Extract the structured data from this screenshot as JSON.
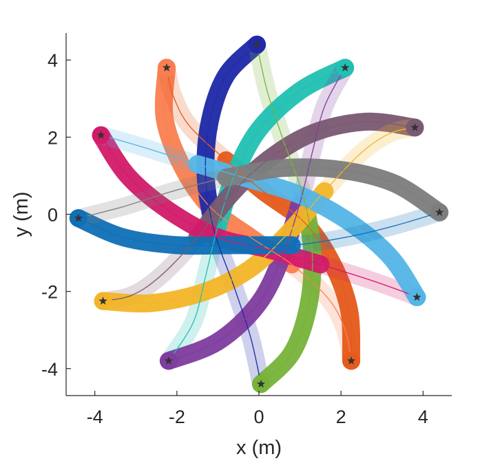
{
  "chart_data": {
    "type": "line",
    "title": "",
    "xlabel": "x (m)",
    "ylabel": "y (m)",
    "xlim": [
      -4.7,
      4.7
    ],
    "ylim": [
      -4.7,
      4.7
    ],
    "xticks": [
      -4,
      -2,
      0,
      2,
      4
    ],
    "yticks": [
      -4,
      -2,
      0,
      2,
      4
    ],
    "xtick_labels": [
      "-4",
      "-2",
      "0",
      "2",
      "4"
    ],
    "ytick_labels": [
      "-4",
      "-2",
      "0",
      "2",
      "4"
    ],
    "grid": false,
    "legend": "none",
    "series": [
      {
        "color": "#f97f52",
        "start": [
          -2.25,
          3.8
        ],
        "goal": [
          2.25,
          -3.8
        ],
        "path": [
          [
            -2.25,
            3.8
          ],
          [
            -2.3,
            2.5
          ],
          [
            -1.9,
            1.3
          ],
          [
            -1.2,
            0.2
          ],
          [
            -0.2,
            -0.6
          ],
          [
            0.8,
            -1.3
          ],
          [
            1.7,
            -2.2
          ],
          [
            2.1,
            -3.0
          ],
          [
            2.25,
            -3.8
          ]
        ]
      },
      {
        "color": "#e55b1c",
        "start": [
          2.25,
          -3.8
        ],
        "goal": [
          -2.25,
          3.8
        ],
        "path": [
          [
            2.25,
            -3.8
          ],
          [
            2.2,
            -2.5
          ],
          [
            1.8,
            -1.3
          ],
          [
            1.1,
            -0.2
          ],
          [
            0.1,
            0.6
          ],
          [
            -0.8,
            1.4
          ],
          [
            -1.7,
            2.3
          ],
          [
            -2.1,
            3.1
          ],
          [
            -2.25,
            3.8
          ]
        ]
      },
      {
        "color": "#1f2aa8",
        "start": [
          -0.05,
          4.4
        ],
        "goal": [
          0.05,
          -4.4
        ],
        "path": [
          [
            -0.05,
            4.4
          ],
          [
            -0.8,
            3.6
          ],
          [
            -1.2,
            2.4
          ],
          [
            -1.3,
            1.0
          ],
          [
            -1.1,
            -0.4
          ],
          [
            -0.6,
            -1.9
          ],
          [
            -0.2,
            -3.2
          ],
          [
            0.05,
            -4.4
          ]
        ]
      },
      {
        "color": "#77b23a",
        "start": [
          0.05,
          -4.4
        ],
        "goal": [
          -0.05,
          4.4
        ],
        "path": [
          [
            0.05,
            -4.4
          ],
          [
            0.8,
            -3.6
          ],
          [
            1.2,
            -2.4
          ],
          [
            1.3,
            -1.0
          ],
          [
            1.1,
            0.4
          ],
          [
            0.6,
            1.9
          ],
          [
            0.2,
            3.2
          ],
          [
            -0.05,
            4.4
          ]
        ]
      },
      {
        "color": "#22c0b2",
        "start": [
          2.1,
          3.8
        ],
        "goal": [
          -2.2,
          -3.8
        ],
        "path": [
          [
            2.1,
            3.8
          ],
          [
            1.0,
            3.2
          ],
          [
            0.0,
            2.2
          ],
          [
            -0.6,
            1.0
          ],
          [
            -1.0,
            -0.3
          ],
          [
            -1.3,
            -1.6
          ],
          [
            -1.6,
            -2.8
          ],
          [
            -2.2,
            -3.8
          ]
        ]
      },
      {
        "color": "#7f3d9e",
        "start": [
          -2.2,
          -3.8
        ],
        "goal": [
          2.1,
          3.8
        ],
        "path": [
          [
            -2.2,
            -3.8
          ],
          [
            -1.0,
            -3.3
          ],
          [
            0.0,
            -2.3
          ],
          [
            0.6,
            -1.0
          ],
          [
            1.0,
            0.3
          ],
          [
            1.3,
            1.6
          ],
          [
            1.6,
            2.8
          ],
          [
            2.1,
            3.8
          ]
        ]
      },
      {
        "color": "#7a5a72",
        "start": [
          3.8,
          2.25
        ],
        "goal": [
          -3.8,
          -2.25
        ],
        "path": [
          [
            3.8,
            2.25
          ],
          [
            2.6,
            2.4
          ],
          [
            1.3,
            2.1
          ],
          [
            0.2,
            1.4
          ],
          [
            -0.7,
            0.5
          ],
          [
            -1.5,
            -0.6
          ],
          [
            -2.4,
            -1.6
          ],
          [
            -3.1,
            -2.1
          ],
          [
            -3.8,
            -2.25
          ]
        ]
      },
      {
        "color": "#f2b52a",
        "start": [
          -3.8,
          -2.25
        ],
        "goal": [
          3.8,
          2.25
        ],
        "path": [
          [
            -3.8,
            -2.25
          ],
          [
            -2.6,
            -2.3
          ],
          [
            -1.3,
            -2.0
          ],
          [
            -0.2,
            -1.4
          ],
          [
            0.7,
            -0.5
          ],
          [
            1.6,
            0.6
          ],
          [
            2.5,
            1.6
          ],
          [
            3.2,
            2.1
          ],
          [
            3.8,
            2.25
          ]
        ]
      },
      {
        "color": "#d21b6a",
        "start": [
          -3.85,
          2.05
        ],
        "goal": [
          3.85,
          -2.15
        ],
        "path": [
          [
            -3.85,
            2.05
          ],
          [
            -3.2,
            1.0
          ],
          [
            -2.2,
            0.1
          ],
          [
            -1.0,
            -0.6
          ],
          [
            0.2,
            -0.9
          ],
          [
            1.5,
            -1.3
          ],
          [
            2.7,
            -1.7
          ],
          [
            3.5,
            -2.0
          ],
          [
            3.85,
            -2.15
          ]
        ]
      },
      {
        "color": "#55b5e6",
        "start": [
          3.85,
          -2.15
        ],
        "goal": [
          -3.85,
          2.05
        ],
        "path": [
          [
            3.85,
            -2.15
          ],
          [
            3.2,
            -1.1
          ],
          [
            2.2,
            -0.2
          ],
          [
            1.0,
            0.5
          ],
          [
            -0.2,
            0.9
          ],
          [
            -1.5,
            1.3
          ],
          [
            -2.7,
            1.7
          ],
          [
            -3.5,
            1.95
          ],
          [
            -3.85,
            2.05
          ]
        ]
      },
      {
        "color": "#1070b5",
        "start": [
          -4.4,
          -0.1
        ],
        "goal": [
          4.4,
          0.05
        ],
        "path": [
          [
            -4.4,
            -0.1
          ],
          [
            -3.3,
            -0.6
          ],
          [
            -2.0,
            -0.8
          ],
          [
            -0.6,
            -0.8
          ],
          [
            0.8,
            -0.8
          ],
          [
            2.1,
            -0.6
          ],
          [
            3.3,
            -0.3
          ],
          [
            4.4,
            0.05
          ]
        ]
      },
      {
        "color": "#7d7d7d",
        "start": [
          4.4,
          0.05
        ],
        "goal": [
          -4.4,
          -0.1
        ],
        "path": [
          [
            4.4,
            0.05
          ],
          [
            3.3,
            0.8
          ],
          [
            2.0,
            1.15
          ],
          [
            0.6,
            1.2
          ],
          [
            -0.8,
            0.95
          ],
          [
            -2.1,
            0.6
          ],
          [
            -3.3,
            0.2
          ],
          [
            -4.4,
            -0.1
          ]
        ]
      }
    ]
  }
}
